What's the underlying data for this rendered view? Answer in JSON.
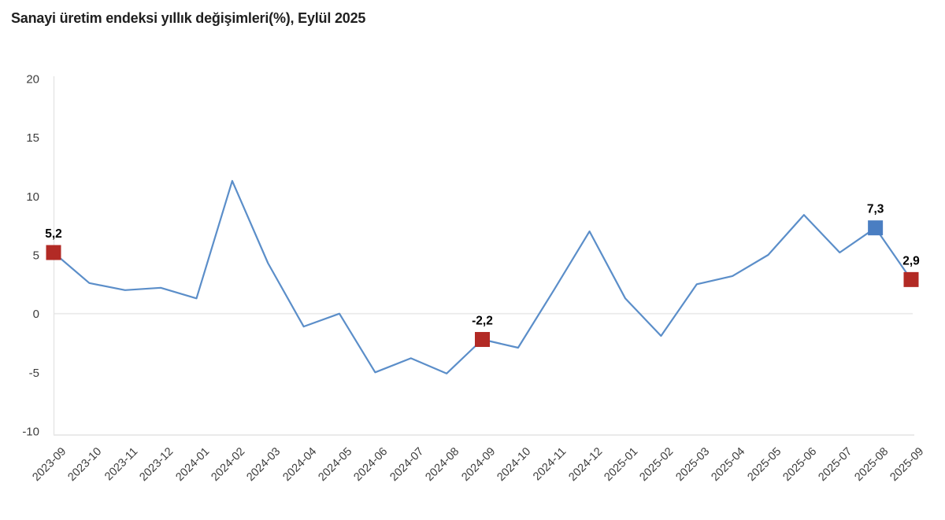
{
  "chart_data": {
    "type": "line",
    "title": "Sanayi üretim endeksi yıllık değişimleri(%), Eylül 2025",
    "categories": [
      "2023-09",
      "2023-10",
      "2023-11",
      "2023-12",
      "2024-01",
      "2024-02",
      "2024-03",
      "2024-04",
      "2024-05",
      "2024-06",
      "2024-07",
      "2024-08",
      "2024-09",
      "2024-10",
      "2024-11",
      "2024-12",
      "2025-01",
      "2025-02",
      "2025-03",
      "2025-04",
      "2025-05",
      "2025-06",
      "2025-07",
      "2025-08",
      "2025-09"
    ],
    "values": [
      5.2,
      2.6,
      2.0,
      2.2,
      1.3,
      11.3,
      4.3,
      -1.1,
      0.0,
      -5.0,
      -3.8,
      -5.1,
      -2.2,
      -2.9,
      2.0,
      7.0,
      1.3,
      -1.9,
      2.5,
      3.2,
      5.0,
      8.4,
      5.2,
      7.3,
      2.9
    ],
    "highlight_points": [
      {
        "index": 0,
        "label": "5,2",
        "color": "#b22a25"
      },
      {
        "index": 12,
        "label": "-2,2",
        "color": "#b22a25"
      },
      {
        "index": 23,
        "label": "7,3",
        "color": "#4a7ec2"
      },
      {
        "index": 24,
        "label": "2,9",
        "color": "#b22a25"
      }
    ],
    "yticks": [
      20,
      15,
      10,
      5,
      0,
      -5,
      -10
    ],
    "ylim": [
      -10,
      20
    ],
    "xlabel": "",
    "ylabel": "",
    "legend": "none",
    "grid": "zero-line-only",
    "line_color": "#5b8ec9",
    "axis_color": "#e4e4e4",
    "zero_line_color": "#e9e9e9",
    "tick_label_color": "#3d3d3d",
    "point_label_color": "#000000"
  }
}
